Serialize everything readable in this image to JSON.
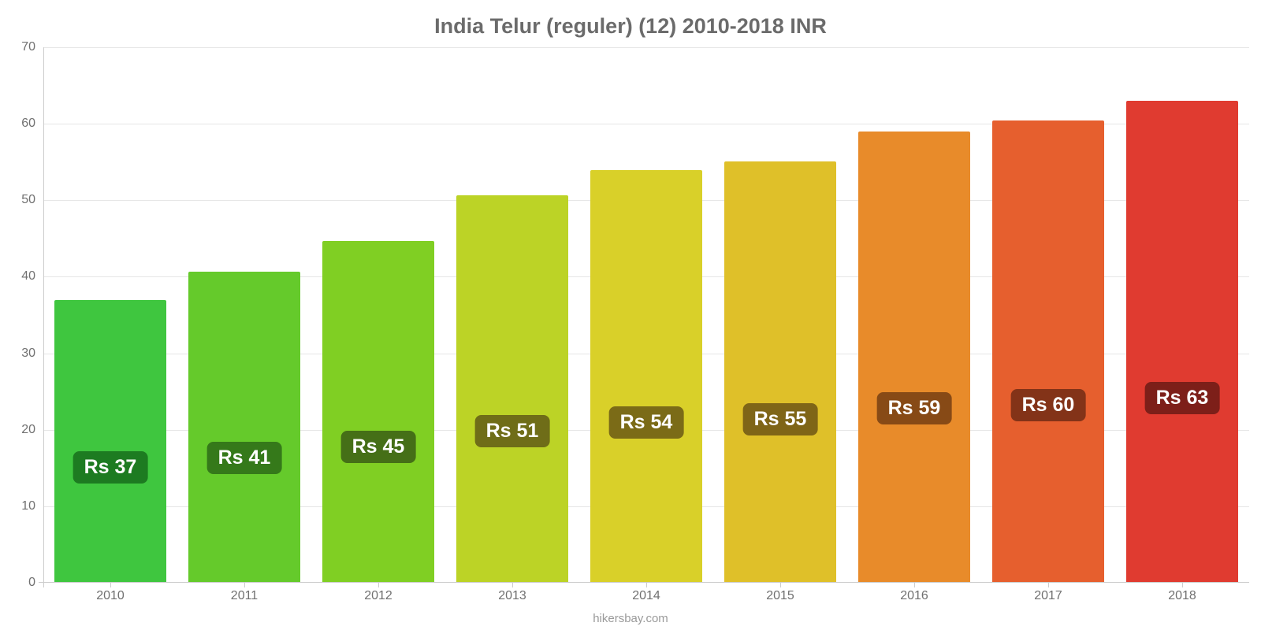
{
  "chart": {
    "type": "bar",
    "title": "India Telur (reguler) (12) 2010-2018 INR",
    "title_color": "#6b6b6b",
    "title_fontsize": 27,
    "background_color": "#ffffff",
    "grid_color": "#e6e6e6",
    "axis_color": "#cccccc",
    "tick_color": "#707070",
    "tick_fontsize": 16,
    "ylim": [
      0,
      70
    ],
    "ytick_step": 10,
    "yticks": [
      0,
      10,
      20,
      30,
      40,
      50,
      60,
      70
    ],
    "bar_width_ratio": 0.84,
    "label_fontsize": 25,
    "label_text_color": "#ffffff",
    "categories": [
      "2010",
      "2011",
      "2012",
      "2013",
      "2014",
      "2015",
      "2016",
      "2017",
      "2018"
    ],
    "values": [
      37,
      40.7,
      44.7,
      50.6,
      53.9,
      55.1,
      59,
      60.4,
      63
    ],
    "value_labels": [
      "Rs 37",
      "Rs 41",
      "Rs 45",
      "Rs 51",
      "Rs 54",
      "Rs 55",
      "Rs 59",
      "Rs 60",
      "Rs 63"
    ],
    "bar_colors": [
      "#3fc63f",
      "#65ca2b",
      "#80cf23",
      "#bcd326",
      "#d9d029",
      "#dfc029",
      "#e88b2a",
      "#e65f2e",
      "#e03b30"
    ],
    "label_bg_colors": [
      "#1d7b21",
      "#35791a",
      "#456f17",
      "#6f6d18",
      "#7b6b17",
      "#7f6517",
      "#874a16",
      "#833318",
      "#7d1f19"
    ],
    "label_bottom_offsets_pct": [
      35,
      35,
      35,
      35,
      35,
      35,
      35,
      35,
      35
    ]
  },
  "footer": {
    "text": "hikersbay.com",
    "color": "#9a9a9a",
    "fontsize": 15
  }
}
